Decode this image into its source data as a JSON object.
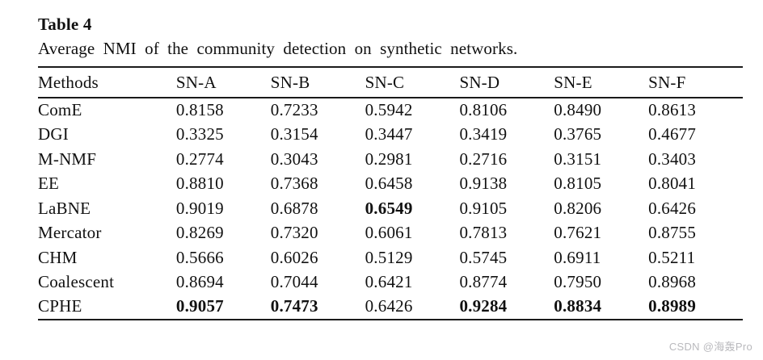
{
  "title": "Table 4",
  "caption": "Average NMI of the community detection on synthetic networks.",
  "table": {
    "columns": [
      "Methods",
      "SN-A",
      "SN-B",
      "SN-C",
      "SN-D",
      "SN-E",
      "SN-F"
    ],
    "rows": [
      {
        "method": "ComE",
        "values": [
          "0.8158",
          "0.7233",
          "0.5942",
          "0.8106",
          "0.8490",
          "0.8613"
        ],
        "bold": [
          false,
          false,
          false,
          false,
          false,
          false
        ]
      },
      {
        "method": "DGI",
        "values": [
          "0.3325",
          "0.3154",
          "0.3447",
          "0.3419",
          "0.3765",
          "0.4677"
        ],
        "bold": [
          false,
          false,
          false,
          false,
          false,
          false
        ]
      },
      {
        "method": "M-NMF",
        "values": [
          "0.2774",
          "0.3043",
          "0.2981",
          "0.2716",
          "0.3151",
          "0.3403"
        ],
        "bold": [
          false,
          false,
          false,
          false,
          false,
          false
        ]
      },
      {
        "method": "EE",
        "values": [
          "0.8810",
          "0.7368",
          "0.6458",
          "0.9138",
          "0.8105",
          "0.8041"
        ],
        "bold": [
          false,
          false,
          false,
          false,
          false,
          false
        ]
      },
      {
        "method": "LaBNE",
        "values": [
          "0.9019",
          "0.6878",
          "0.6549",
          "0.9105",
          "0.8206",
          "0.6426"
        ],
        "bold": [
          false,
          false,
          true,
          false,
          false,
          false
        ]
      },
      {
        "method": "Mercator",
        "values": [
          "0.8269",
          "0.7320",
          "0.6061",
          "0.7813",
          "0.7621",
          "0.8755"
        ],
        "bold": [
          false,
          false,
          false,
          false,
          false,
          false
        ]
      },
      {
        "method": "CHM",
        "values": [
          "0.5666",
          "0.6026",
          "0.5129",
          "0.5745",
          "0.6911",
          "0.5211"
        ],
        "bold": [
          false,
          false,
          false,
          false,
          false,
          false
        ]
      },
      {
        "method": "Coalescent",
        "values": [
          "0.8694",
          "0.7044",
          "0.6421",
          "0.8774",
          "0.7950",
          "0.8968"
        ],
        "bold": [
          false,
          false,
          false,
          false,
          false,
          false
        ]
      },
      {
        "method": "CPHE",
        "values": [
          "0.9057",
          "0.7473",
          "0.6426",
          "0.9284",
          "0.8834",
          "0.8989"
        ],
        "bold": [
          true,
          true,
          false,
          true,
          true,
          true
        ]
      }
    ]
  },
  "watermark": "CSDN @海轰Pro",
  "colors": {
    "background": "#ffffff",
    "text": "#111111",
    "rule": "#1a1a1a",
    "watermark": "#b9b9bd"
  }
}
